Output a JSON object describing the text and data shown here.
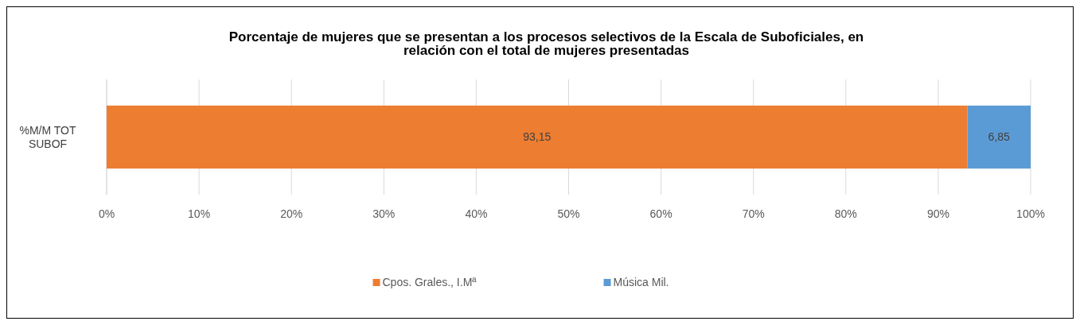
{
  "chart_data": {
    "type": "bar",
    "orientation": "horizontal",
    "stacked": true,
    "title": "Porcentaje de mujeres que se presentan a los procesos selectivos de la Escala de Suboficiales, en relación con el total de mujeres presentadas",
    "categories": [
      "%M/M TOT SUBOF"
    ],
    "series": [
      {
        "name": "Cpos. Grales., I.Mª",
        "color": "#ed7d31",
        "values": [
          93.15
        ],
        "value_labels": [
          "93,15"
        ]
      },
      {
        "name": "Música Mil.",
        "color": "#5b9bd5",
        "values": [
          6.85
        ],
        "value_labels": [
          "6,85"
        ]
      }
    ],
    "xlim": [
      0,
      100
    ],
    "xticks": [
      {
        "value": 0,
        "label": "0%"
      },
      {
        "value": 10,
        "label": "10%"
      },
      {
        "value": 20,
        "label": "20%"
      },
      {
        "value": 30,
        "label": "30%"
      },
      {
        "value": 40,
        "label": "40%"
      },
      {
        "value": 50,
        "label": "50%"
      },
      {
        "value": 60,
        "label": "60%"
      },
      {
        "value": 70,
        "label": "70%"
      },
      {
        "value": 80,
        "label": "80%"
      },
      {
        "value": 90,
        "label": "90%"
      },
      {
        "value": 100,
        "label": "100%"
      }
    ],
    "grid": "x",
    "legend": "bottom"
  }
}
